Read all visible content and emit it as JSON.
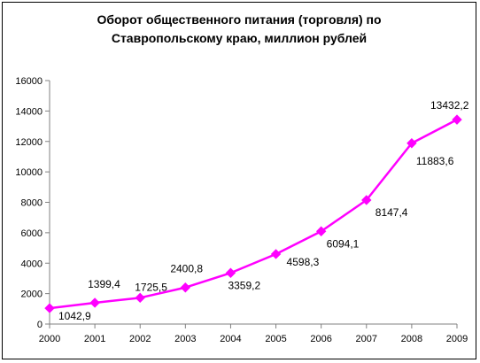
{
  "chart_data": {
    "type": "line",
    "title_lines": [
      "Оборот общественного питания (торговля) по",
      "Ставропольскому краю, миллион рублей"
    ],
    "x": [
      "2000",
      "2001",
      "2002",
      "2003",
      "2004",
      "2005",
      "2006",
      "2007",
      "2008",
      "2009"
    ],
    "series": [
      {
        "values": [
          1042.9,
          1399.4,
          1725.5,
          2400.8,
          3359.2,
          4598.3,
          6094.1,
          8147.4,
          11883.6,
          13432.2
        ],
        "data_labels": [
          "1042,9",
          "1399,4",
          "1725,5",
          "2400,8",
          "3359,2",
          "4598,3",
          "6094,1",
          "8147,4",
          "11883,6",
          "13432,2"
        ],
        "color": "#ff00ff"
      }
    ],
    "yticks": [
      "0",
      "2000",
      "4000",
      "6000",
      "8000",
      "10000",
      "12000",
      "14000",
      "16000"
    ],
    "ylim": [
      0,
      16000
    ],
    "grid": false,
    "legend": "none",
    "plot_background": "#ffffff"
  }
}
